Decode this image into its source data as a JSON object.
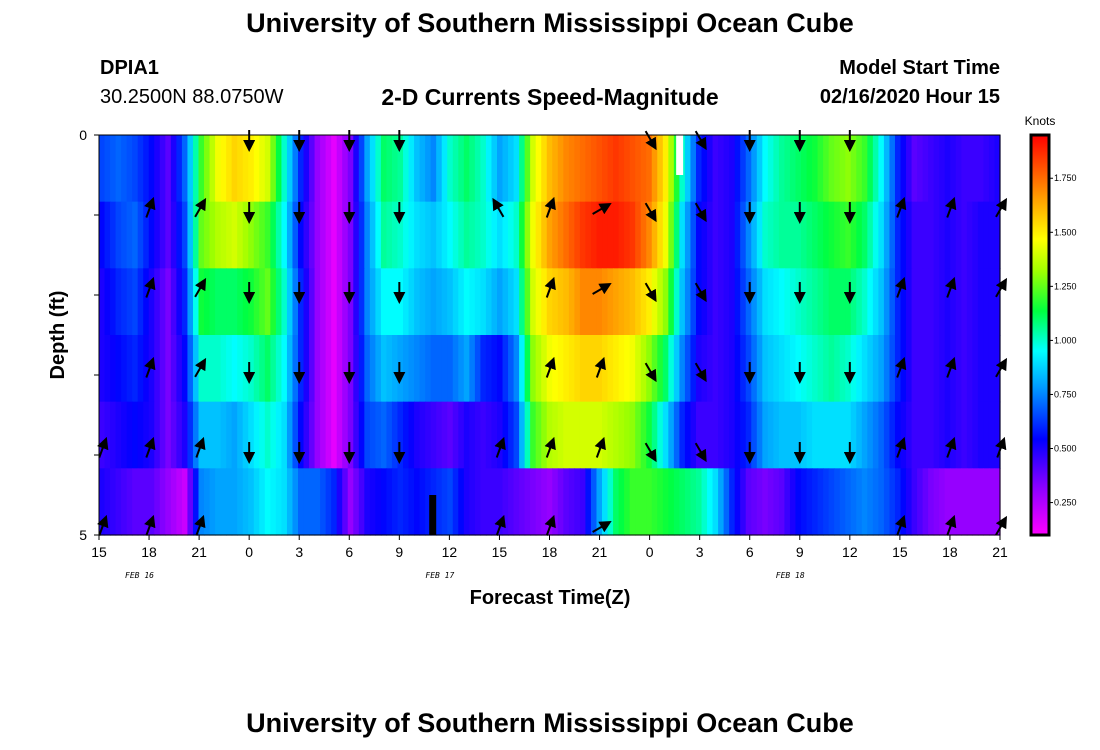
{
  "header": {
    "title": "University of Southern Mississippi Ocean Cube",
    "station": "DPIA1",
    "latlon": "30.2500N 88.0750W",
    "subtitle": "2-D Currents Speed-Magnitude",
    "model_start_label": "Model Start Time",
    "model_start_value": "02/16/2020 Hour 15"
  },
  "footer": {
    "title": "University of Southern Mississippi Ocean Cube"
  },
  "chart_data": {
    "type": "heatmap",
    "title": "2-D Currents Speed-Magnitude",
    "xlabel": "Forecast Time(Z)",
    "ylabel": "Depth (ft)",
    "x_tick_labels": [
      "15",
      "18",
      "21",
      "0",
      "3",
      "6",
      "9",
      "12",
      "15",
      "18",
      "21",
      "0",
      "3",
      "6",
      "9",
      "12",
      "15",
      "18",
      "21"
    ],
    "date_labels": [
      {
        "text": "FEB 16",
        "hour_index": 1
      },
      {
        "text": "FEB 17",
        "hour_index": 7
      },
      {
        "text": "FEB 18",
        "hour_index": 14
      }
    ],
    "y_tick_labels": [
      {
        "value": 0,
        "text": "0"
      },
      {
        "value": 1,
        "text": ""
      },
      {
        "value": 2,
        "text": ""
      },
      {
        "value": 3,
        "text": ""
      },
      {
        "value": 4,
        "text": ""
      },
      {
        "value": 5,
        "text": "5"
      }
    ],
    "ylim": [
      0,
      5
    ],
    "xlim_hours": [
      0,
      54
    ],
    "colorbar": {
      "title": "Knots",
      "min": 0.1,
      "max": 1.95,
      "ticks": [
        0.25,
        0.5,
        0.75,
        1.0,
        1.25,
        1.5,
        1.75
      ],
      "tick_labels": [
        "0.250",
        "0.500",
        "0.750",
        "1.000",
        "1.250",
        "1.500",
        "1.750"
      ]
    },
    "layers": 5,
    "keyframes_hours": [
      0,
      1,
      2,
      3,
      4,
      5,
      6,
      7,
      8,
      9,
      10,
      11,
      12,
      13,
      14,
      15,
      16,
      17,
      18,
      19,
      20,
      21,
      22,
      23,
      24,
      25,
      26,
      27,
      28,
      29,
      30,
      31,
      32,
      33,
      34,
      35,
      36,
      37,
      38,
      39,
      40,
      41,
      42,
      43,
      44,
      45,
      46,
      47,
      48,
      49,
      50,
      51,
      52,
      53,
      54
    ],
    "speed_profile_top": [
      0.65,
      0.7,
      0.65,
      0.55,
      0.4,
      0.7,
      1.2,
      1.45,
      1.55,
      1.5,
      1.4,
      1.0,
      0.6,
      0.3,
      0.15,
      0.35,
      0.8,
      1.1,
      1.05,
      0.85,
      0.75,
      1.0,
      1.1,
      1.0,
      0.8,
      0.9,
      1.4,
      1.6,
      1.7,
      1.75,
      1.8,
      1.85,
      1.8,
      1.75,
      1.5,
      1.0,
      0.6,
      0.45,
      0.5,
      0.7,
      0.95,
      1.05,
      1.1,
      1.15,
      1.25,
      1.3,
      1.2,
      0.95,
      0.6,
      0.4,
      0.45,
      0.5,
      0.45,
      0.45,
      0.5
    ],
    "depth_factors": [
      1.0,
      0.96,
      0.9,
      0.82,
      0.72
    ],
    "speed_layers": [
      [
        0.65,
        0.7,
        0.65,
        0.55,
        0.4,
        0.7,
        1.2,
        1.45,
        1.55,
        1.5,
        1.4,
        1.0,
        0.6,
        0.3,
        0.15,
        0.35,
        0.8,
        1.1,
        1.05,
        0.85,
        0.75,
        1.0,
        1.1,
        1.0,
        0.8,
        0.9,
        1.4,
        1.6,
        1.7,
        1.75,
        1.8,
        1.85,
        1.8,
        1.75,
        1.5,
        1.0,
        0.6,
        0.45,
        0.5,
        0.7,
        0.95,
        1.05,
        1.1,
        1.15,
        1.25,
        1.3,
        1.2,
        0.95,
        0.6,
        0.4,
        0.45,
        0.5,
        0.45,
        0.45,
        0.5
      ],
      [
        0.55,
        0.65,
        0.7,
        0.55,
        0.4,
        0.65,
        1.25,
        1.35,
        1.4,
        1.3,
        1.2,
        0.95,
        0.55,
        0.3,
        0.15,
        0.35,
        0.75,
        1.05,
        1.0,
        0.9,
        0.85,
        0.95,
        1.05,
        1.0,
        0.9,
        1.0,
        1.45,
        1.65,
        1.75,
        1.85,
        1.9,
        1.9,
        1.85,
        1.7,
        1.45,
        0.9,
        0.55,
        0.45,
        0.5,
        0.75,
        1.0,
        1.05,
        1.05,
        1.1,
        1.15,
        1.2,
        1.1,
        0.9,
        0.6,
        0.45,
        0.45,
        0.5,
        0.45,
        0.5,
        0.5
      ],
      [
        0.5,
        0.6,
        0.65,
        0.5,
        0.35,
        0.6,
        1.15,
        1.1,
        1.1,
        1.15,
        1.25,
        1.0,
        0.6,
        0.3,
        0.15,
        0.35,
        0.75,
        0.95,
        0.95,
        0.85,
        0.8,
        0.85,
        0.95,
        0.9,
        0.8,
        0.9,
        1.4,
        1.55,
        1.6,
        1.7,
        1.7,
        1.65,
        1.6,
        1.5,
        1.3,
        0.85,
        0.55,
        0.45,
        0.5,
        0.7,
        0.9,
        0.95,
        1.0,
        1.05,
        1.1,
        1.1,
        1.0,
        0.85,
        0.6,
        0.45,
        0.45,
        0.5,
        0.45,
        0.5,
        0.5
      ],
      [
        0.5,
        0.55,
        0.6,
        0.5,
        0.35,
        0.55,
        1.0,
        1.0,
        0.95,
        1.0,
        1.1,
        0.95,
        0.6,
        0.3,
        0.15,
        0.35,
        0.7,
        0.85,
        0.8,
        0.75,
        0.7,
        0.7,
        0.8,
        0.6,
        0.55,
        0.75,
        1.3,
        1.45,
        1.5,
        1.55,
        1.55,
        1.5,
        1.45,
        1.3,
        1.1,
        0.75,
        0.5,
        0.45,
        0.5,
        0.65,
        0.85,
        0.9,
        0.95,
        1.0,
        1.05,
        1.0,
        0.9,
        0.8,
        0.6,
        0.45,
        0.45,
        0.5,
        0.45,
        0.5,
        0.5
      ],
      [
        0.45,
        0.5,
        0.55,
        0.5,
        0.35,
        0.5,
        0.85,
        0.85,
        0.8,
        0.9,
        1.0,
        0.9,
        0.55,
        0.3,
        0.15,
        0.35,
        0.65,
        0.7,
        0.6,
        0.5,
        0.45,
        0.4,
        0.5,
        0.45,
        0.5,
        0.65,
        1.2,
        1.35,
        1.4,
        1.4,
        1.4,
        1.35,
        1.3,
        1.15,
        0.9,
        0.6,
        0.45,
        0.45,
        0.5,
        0.6,
        0.8,
        0.85,
        0.85,
        0.9,
        0.9,
        0.9,
        0.8,
        0.7,
        0.55,
        0.45,
        0.45,
        0.5,
        0.45,
        0.5,
        0.5
      ]
    ],
    "bottom_layer": [
      0.5,
      0.45,
      0.4,
      0.4,
      0.3,
      0.2,
      0.75,
      0.8,
      0.8,
      0.85,
      0.95,
      0.9,
      0.7,
      0.7,
      0.6,
      0.3,
      0.5,
      0.55,
      0.6,
      0.55,
      0.6,
      0.65,
      0.5,
      0.45,
      0.45,
      0.4,
      0.35,
      0.3,
      0.4,
      0.45,
      0.8,
      1.1,
      1.2,
      1.2,
      1.15,
      1.1,
      1.05,
      0.9,
      0.6,
      0.4,
      0.35,
      0.4,
      0.55,
      0.6,
      0.65,
      0.7,
      0.75,
      0.7,
      0.6,
      0.45,
      0.35,
      0.3,
      0.3,
      0.3,
      0.3
    ],
    "arrows": {
      "hour_indices": [
        0,
        3,
        6,
        9,
        12,
        15,
        18,
        21,
        24,
        27,
        30,
        33,
        36,
        39,
        42,
        45,
        48,
        51,
        54
      ],
      "directions_deg_by_row": [
        [
          null,
          null,
          null,
          180,
          180,
          180,
          180,
          null,
          null,
          null,
          null,
          150,
          150,
          180,
          180,
          180,
          null,
          null,
          null
        ],
        [
          null,
          20,
          30,
          180,
          180,
          180,
          180,
          null,
          330,
          20,
          60,
          150,
          150,
          180,
          180,
          180,
          20,
          20,
          30
        ],
        [
          null,
          20,
          30,
          180,
          180,
          180,
          180,
          null,
          null,
          20,
          60,
          150,
          150,
          180,
          180,
          180,
          20,
          20,
          30
        ],
        [
          null,
          20,
          30,
          180,
          180,
          180,
          180,
          null,
          null,
          20,
          20,
          150,
          150,
          180,
          180,
          180,
          20,
          20,
          30
        ],
        [
          20,
          20,
          20,
          180,
          180,
          180,
          180,
          null,
          20,
          20,
          20,
          150,
          150,
          180,
          180,
          180,
          20,
          20,
          20
        ],
        [
          20,
          20,
          20,
          null,
          null,
          null,
          null,
          null,
          20,
          20,
          60,
          null,
          null,
          null,
          null,
          null,
          20,
          20,
          30
        ]
      ]
    },
    "markers": [
      {
        "type": "white-bar",
        "hour": 34.8,
        "depth_from": 0,
        "depth_to": 0.5
      },
      {
        "type": "black-bar",
        "hour": 20.0,
        "depth_from": 4.5,
        "depth_to": 5
      }
    ]
  }
}
